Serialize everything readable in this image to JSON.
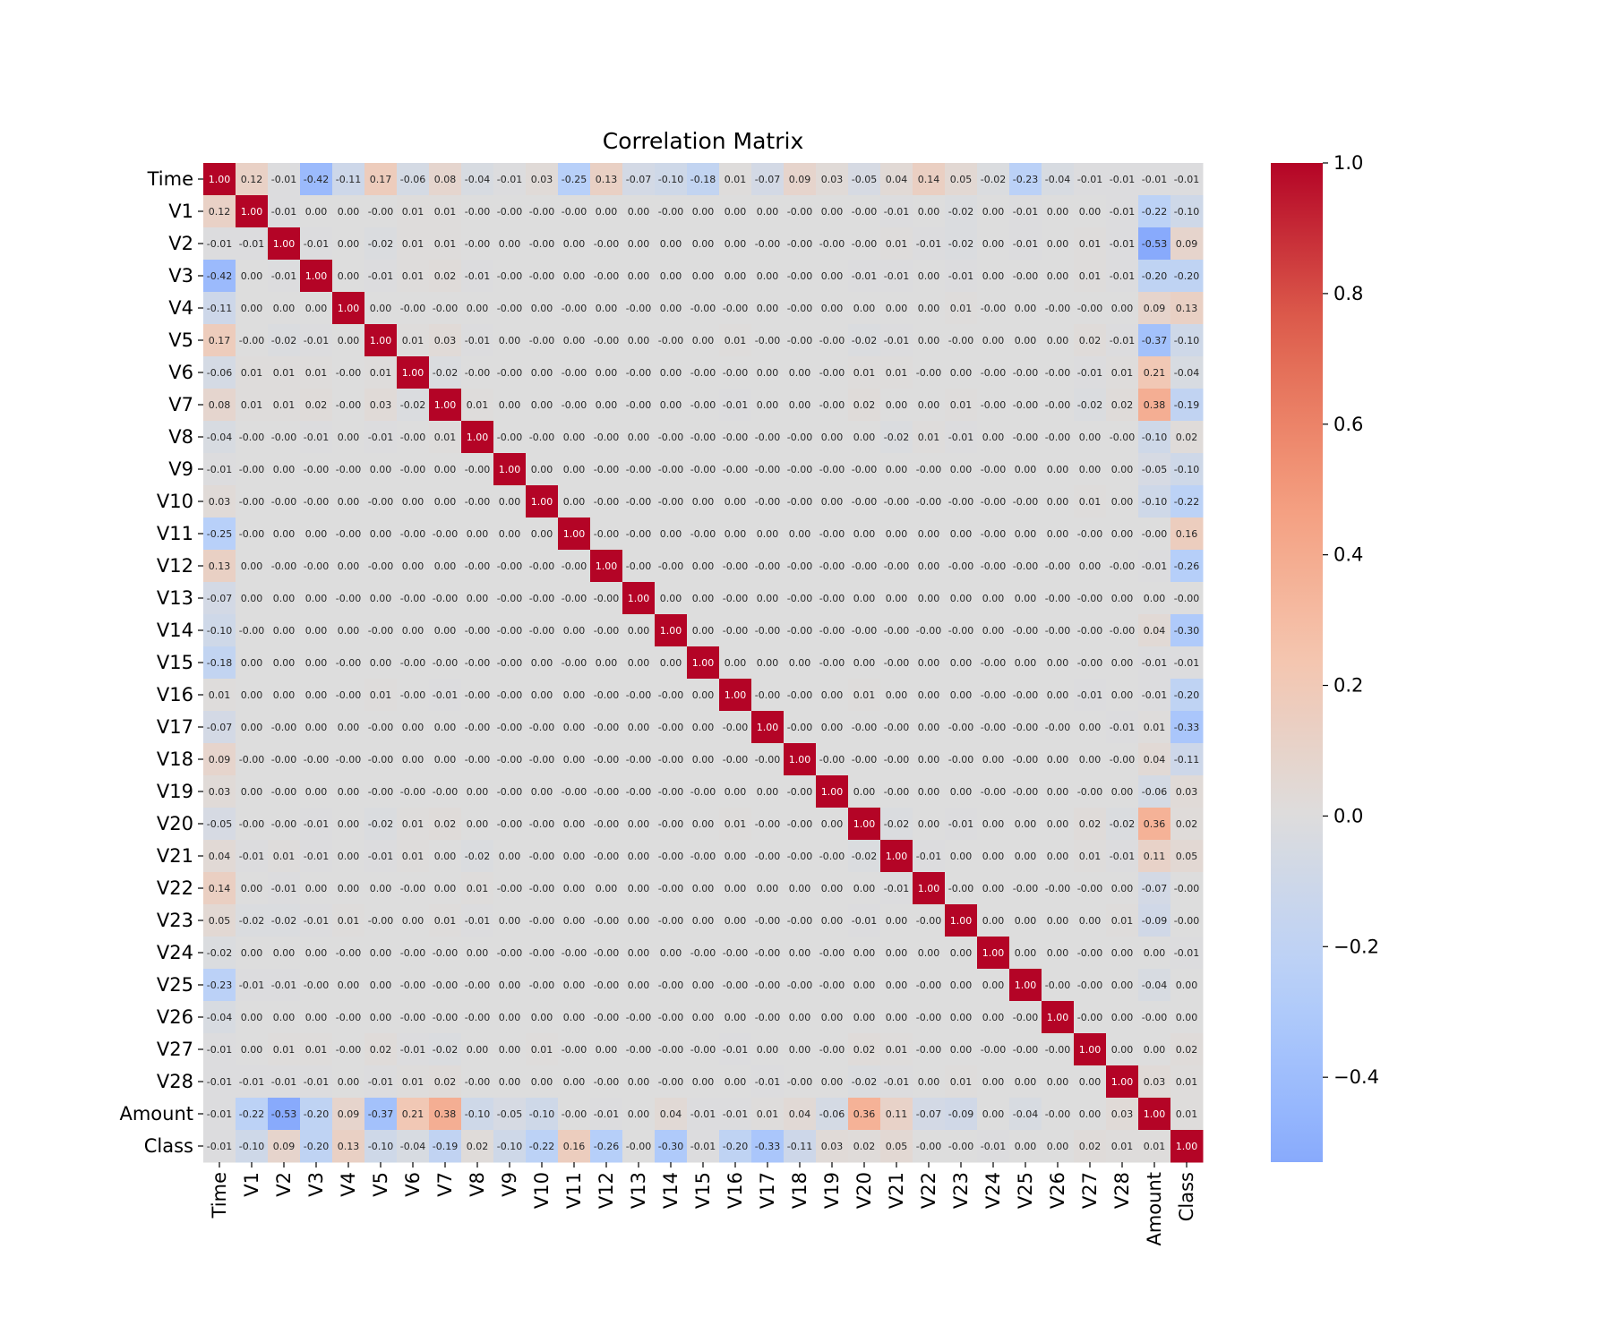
{
  "chart_data": {
    "type": "heatmap",
    "title": "Correlation Matrix",
    "variables": [
      "Time",
      "V1",
      "V2",
      "V3",
      "V4",
      "V5",
      "V6",
      "V7",
      "V8",
      "V9",
      "V10",
      "V11",
      "V12",
      "V13",
      "V14",
      "V15",
      "V16",
      "V17",
      "V18",
      "V19",
      "V20",
      "V21",
      "V22",
      "V23",
      "V24",
      "V25",
      "V26",
      "V27",
      "V28",
      "Amount",
      "Class"
    ],
    "cell_labels": [
      [
        "1.00",
        "0.12",
        "-0.01",
        "-0.42",
        "-0.11",
        "0.17",
        "-0.06",
        "0.08",
        "-0.04",
        "-0.01",
        "0.03",
        "-0.25",
        "0.13",
        "-0.07",
        "-0.10",
        "-0.18",
        "0.01",
        "-0.07",
        "0.09",
        "0.03",
        "-0.05",
        "0.04",
        "0.14",
        "0.05",
        "-0.02",
        "-0.23",
        "-0.04",
        "-0.01",
        "-0.01",
        "-0.01",
        "-0.01"
      ],
      [
        "0.12",
        "1.00",
        "-0.01",
        "0.00",
        "0.00",
        "-0.00",
        "0.01",
        "0.01",
        "-0.00",
        "-0.00",
        "-0.00",
        "-0.00",
        "0.00",
        "0.00",
        "-0.00",
        "0.00",
        "0.00",
        "0.00",
        "-0.00",
        "0.00",
        "-0.00",
        "-0.01",
        "0.00",
        "-0.02",
        "0.00",
        "-0.01",
        "0.00",
        "0.00",
        "-0.01",
        "-0.22",
        "-0.10"
      ],
      [
        "-0.01",
        "-0.01",
        "1.00",
        "-0.01",
        "0.00",
        "-0.02",
        "0.01",
        "0.01",
        "-0.00",
        "0.00",
        "-0.00",
        "0.00",
        "-0.00",
        "0.00",
        "0.00",
        "0.00",
        "0.00",
        "-0.00",
        "-0.00",
        "-0.00",
        "-0.00",
        "0.01",
        "-0.01",
        "-0.02",
        "0.00",
        "-0.01",
        "0.00",
        "0.01",
        "-0.01",
        "-0.53",
        "0.09"
      ],
      [
        "-0.42",
        "0.00",
        "-0.01",
        "1.00",
        "0.00",
        "-0.01",
        "0.01",
        "0.02",
        "-0.01",
        "-0.00",
        "-0.00",
        "0.00",
        "-0.00",
        "0.00",
        "0.00",
        "0.00",
        "0.00",
        "0.00",
        "-0.00",
        "0.00",
        "-0.01",
        "-0.01",
        "0.00",
        "-0.01",
        "0.00",
        "-0.00",
        "0.00",
        "0.01",
        "-0.01",
        "-0.20",
        "-0.20"
      ],
      [
        "-0.11",
        "0.00",
        "0.00",
        "0.00",
        "1.00",
        "0.00",
        "-0.00",
        "-0.00",
        "0.00",
        "-0.00",
        "0.00",
        "-0.00",
        "0.00",
        "-0.00",
        "0.00",
        "-0.00",
        "-0.00",
        "0.00",
        "-0.00",
        "0.00",
        "0.00",
        "0.00",
        "0.00",
        "0.01",
        "-0.00",
        "0.00",
        "-0.00",
        "-0.00",
        "0.00",
        "0.09",
        "0.13"
      ],
      [
        "0.17",
        "-0.00",
        "-0.02",
        "-0.01",
        "0.00",
        "1.00",
        "0.01",
        "0.03",
        "-0.01",
        "0.00",
        "-0.00",
        "0.00",
        "-0.00",
        "0.00",
        "-0.00",
        "0.00",
        "0.01",
        "-0.00",
        "-0.00",
        "-0.00",
        "-0.02",
        "-0.01",
        "0.00",
        "-0.00",
        "0.00",
        "0.00",
        "0.00",
        "0.02",
        "-0.01",
        "-0.37",
        "-0.10"
      ],
      [
        "-0.06",
        "0.01",
        "0.01",
        "0.01",
        "-0.00",
        "0.01",
        "1.00",
        "-0.02",
        "-0.00",
        "-0.00",
        "0.00",
        "-0.00",
        "0.00",
        "-0.00",
        "0.00",
        "-0.00",
        "-0.00",
        "0.00",
        "0.00",
        "-0.00",
        "0.01",
        "0.01",
        "-0.00",
        "0.00",
        "-0.00",
        "-0.00",
        "-0.00",
        "-0.01",
        "0.01",
        "0.21",
        "-0.04"
      ],
      [
        "0.08",
        "0.01",
        "0.01",
        "0.02",
        "-0.00",
        "0.03",
        "-0.02",
        "1.00",
        "0.01",
        "0.00",
        "0.00",
        "-0.00",
        "0.00",
        "-0.00",
        "0.00",
        "-0.00",
        "-0.01",
        "0.00",
        "0.00",
        "-0.00",
        "0.02",
        "0.00",
        "0.00",
        "0.01",
        "-0.00",
        "-0.00",
        "-0.00",
        "-0.02",
        "0.02",
        "0.38",
        "-0.19"
      ],
      [
        "-0.04",
        "-0.00",
        "-0.00",
        "-0.01",
        "0.00",
        "-0.01",
        "-0.00",
        "0.01",
        "1.00",
        "-0.00",
        "-0.00",
        "0.00",
        "-0.00",
        "0.00",
        "-0.00",
        "-0.00",
        "-0.00",
        "-0.00",
        "-0.00",
        "0.00",
        "0.00",
        "-0.02",
        "0.01",
        "-0.01",
        "0.00",
        "-0.00",
        "-0.00",
        "0.00",
        "-0.00",
        "-0.10",
        "0.02"
      ],
      [
        "-0.01",
        "-0.00",
        "0.00",
        "-0.00",
        "-0.00",
        "0.00",
        "-0.00",
        "0.00",
        "-0.00",
        "1.00",
        "0.00",
        "0.00",
        "-0.00",
        "-0.00",
        "-0.00",
        "-0.00",
        "-0.00",
        "-0.00",
        "-0.00",
        "-0.00",
        "-0.00",
        "0.00",
        "-0.00",
        "0.00",
        "-0.00",
        "0.00",
        "0.00",
        "0.00",
        "0.00",
        "-0.05",
        "-0.10"
      ],
      [
        "0.03",
        "-0.00",
        "-0.00",
        "-0.00",
        "0.00",
        "-0.00",
        "0.00",
        "0.00",
        "-0.00",
        "0.00",
        "1.00",
        "0.00",
        "-0.00",
        "-0.00",
        "-0.00",
        "0.00",
        "0.00",
        "-0.00",
        "-0.00",
        "0.00",
        "-0.00",
        "-0.00",
        "-0.00",
        "-0.00",
        "-0.00",
        "-0.00",
        "0.00",
        "0.01",
        "0.00",
        "-0.10",
        "-0.22"
      ],
      [
        "-0.25",
        "-0.00",
        "0.00",
        "0.00",
        "-0.00",
        "0.00",
        "-0.00",
        "-0.00",
        "0.00",
        "0.00",
        "0.00",
        "1.00",
        "-0.00",
        "-0.00",
        "0.00",
        "-0.00",
        "0.00",
        "0.00",
        "0.00",
        "-0.00",
        "0.00",
        "0.00",
        "0.00",
        "0.00",
        "-0.00",
        "0.00",
        "0.00",
        "-0.00",
        "0.00",
        "-0.00",
        "0.16"
      ],
      [
        "0.13",
        "0.00",
        "-0.00",
        "-0.00",
        "0.00",
        "-0.00",
        "0.00",
        "0.00",
        "-0.00",
        "-0.00",
        "-0.00",
        "-0.00",
        "1.00",
        "-0.00",
        "-0.00",
        "0.00",
        "-0.00",
        "-0.00",
        "-0.00",
        "-0.00",
        "-0.00",
        "-0.00",
        "0.00",
        "-0.00",
        "-0.00",
        "-0.00",
        "-0.00",
        "0.00",
        "-0.00",
        "-0.01",
        "-0.26"
      ],
      [
        "-0.07",
        "0.00",
        "0.00",
        "0.00",
        "-0.00",
        "0.00",
        "-0.00",
        "-0.00",
        "0.00",
        "-0.00",
        "-0.00",
        "-0.00",
        "-0.00",
        "1.00",
        "0.00",
        "0.00",
        "-0.00",
        "0.00",
        "-0.00",
        "-0.00",
        "0.00",
        "0.00",
        "0.00",
        "0.00",
        "0.00",
        "0.00",
        "-0.00",
        "-0.00",
        "0.00",
        "0.00",
        "-0.00"
      ],
      [
        "-0.10",
        "-0.00",
        "0.00",
        "0.00",
        "0.00",
        "-0.00",
        "0.00",
        "0.00",
        "-0.00",
        "-0.00",
        "-0.00",
        "0.00",
        "-0.00",
        "0.00",
        "1.00",
        "0.00",
        "-0.00",
        "-0.00",
        "-0.00",
        "-0.00",
        "-0.00",
        "-0.00",
        "-0.00",
        "-0.00",
        "0.00",
        "-0.00",
        "-0.00",
        "-0.00",
        "-0.00",
        "0.04",
        "-0.30"
      ],
      [
        "-0.18",
        "0.00",
        "0.00",
        "0.00",
        "-0.00",
        "0.00",
        "-0.00",
        "-0.00",
        "-0.00",
        "-0.00",
        "0.00",
        "-0.00",
        "0.00",
        "0.00",
        "0.00",
        "1.00",
        "0.00",
        "0.00",
        "0.00",
        "-0.00",
        "0.00",
        "-0.00",
        "0.00",
        "0.00",
        "-0.00",
        "0.00",
        "0.00",
        "-0.00",
        "0.00",
        "-0.01",
        "-0.01"
      ],
      [
        "0.01",
        "0.00",
        "0.00",
        "0.00",
        "-0.00",
        "0.01",
        "-0.00",
        "-0.01",
        "-0.00",
        "-0.00",
        "0.00",
        "0.00",
        "-0.00",
        "-0.00",
        "-0.00",
        "0.00",
        "1.00",
        "-0.00",
        "-0.00",
        "0.00",
        "0.01",
        "0.00",
        "0.00",
        "0.00",
        "-0.00",
        "-0.00",
        "0.00",
        "-0.01",
        "0.00",
        "-0.01",
        "-0.20"
      ],
      [
        "-0.07",
        "0.00",
        "-0.00",
        "0.00",
        "0.00",
        "-0.00",
        "0.00",
        "0.00",
        "-0.00",
        "-0.00",
        "-0.00",
        "0.00",
        "-0.00",
        "0.00",
        "-0.00",
        "0.00",
        "-0.00",
        "1.00",
        "-0.00",
        "0.00",
        "-0.00",
        "-0.00",
        "0.00",
        "-0.00",
        "-0.00",
        "-0.00",
        "-0.00",
        "0.00",
        "-0.01",
        "0.01",
        "-0.33"
      ],
      [
        "0.09",
        "-0.00",
        "-0.00",
        "-0.00",
        "-0.00",
        "-0.00",
        "0.00",
        "0.00",
        "-0.00",
        "-0.00",
        "-0.00",
        "0.00",
        "-0.00",
        "-0.00",
        "-0.00",
        "0.00",
        "-0.00",
        "-0.00",
        "1.00",
        "-0.00",
        "-0.00",
        "-0.00",
        "0.00",
        "-0.00",
        "0.00",
        "-0.00",
        "0.00",
        "0.00",
        "-0.00",
        "0.04",
        "-0.11"
      ],
      [
        "0.03",
        "0.00",
        "-0.00",
        "0.00",
        "0.00",
        "-0.00",
        "-0.00",
        "-0.00",
        "0.00",
        "-0.00",
        "0.00",
        "-0.00",
        "-0.00",
        "-0.00",
        "-0.00",
        "-0.00",
        "0.00",
        "0.00",
        "-0.00",
        "1.00",
        "0.00",
        "-0.00",
        "0.00",
        "0.00",
        "-0.00",
        "-0.00",
        "0.00",
        "-0.00",
        "0.00",
        "-0.06",
        "0.03"
      ],
      [
        "-0.05",
        "-0.00",
        "-0.00",
        "-0.01",
        "0.00",
        "-0.02",
        "0.01",
        "0.02",
        "0.00",
        "-0.00",
        "-0.00",
        "0.00",
        "-0.00",
        "0.00",
        "-0.00",
        "0.00",
        "0.01",
        "-0.00",
        "-0.00",
        "0.00",
        "1.00",
        "-0.02",
        "0.00",
        "-0.01",
        "0.00",
        "0.00",
        "0.00",
        "0.02",
        "-0.02",
        "0.36",
        "0.02"
      ],
      [
        "0.04",
        "-0.01",
        "0.01",
        "-0.01",
        "0.00",
        "-0.01",
        "0.01",
        "0.00",
        "-0.02",
        "0.00",
        "-0.00",
        "0.00",
        "-0.00",
        "0.00",
        "-0.00",
        "-0.00",
        "0.00",
        "-0.00",
        "-0.00",
        "-0.00",
        "-0.02",
        "1.00",
        "-0.01",
        "0.00",
        "0.00",
        "0.00",
        "0.00",
        "0.01",
        "-0.01",
        "0.11",
        "0.05"
      ],
      [
        "0.14",
        "0.00",
        "-0.01",
        "0.00",
        "0.00",
        "0.00",
        "-0.00",
        "0.00",
        "0.01",
        "-0.00",
        "-0.00",
        "0.00",
        "0.00",
        "0.00",
        "-0.00",
        "0.00",
        "0.00",
        "0.00",
        "0.00",
        "0.00",
        "0.00",
        "-0.01",
        "1.00",
        "-0.00",
        "0.00",
        "-0.00",
        "-0.00",
        "-0.00",
        "0.00",
        "-0.07",
        "-0.00"
      ],
      [
        "0.05",
        "-0.02",
        "-0.02",
        "-0.01",
        "0.01",
        "-0.00",
        "0.00",
        "0.01",
        "-0.01",
        "0.00",
        "-0.00",
        "0.00",
        "-0.00",
        "0.00",
        "-0.00",
        "0.00",
        "0.00",
        "-0.00",
        "-0.00",
        "0.00",
        "-0.01",
        "0.00",
        "-0.00",
        "1.00",
        "0.00",
        "0.00",
        "0.00",
        "0.00",
        "0.01",
        "-0.09",
        "-0.00"
      ],
      [
        "-0.02",
        "0.00",
        "0.00",
        "0.00",
        "-0.00",
        "0.00",
        "-0.00",
        "-0.00",
        "0.00",
        "-0.00",
        "-0.00",
        "-0.00",
        "-0.00",
        "0.00",
        "0.00",
        "-0.00",
        "-0.00",
        "-0.00",
        "0.00",
        "-0.00",
        "0.00",
        "0.00",
        "0.00",
        "0.00",
        "1.00",
        "0.00",
        "0.00",
        "-0.00",
        "0.00",
        "0.00",
        "-0.01"
      ],
      [
        "-0.23",
        "-0.01",
        "-0.01",
        "-0.00",
        "0.00",
        "0.00",
        "-0.00",
        "-0.00",
        "-0.00",
        "0.00",
        "-0.00",
        "0.00",
        "-0.00",
        "0.00",
        "-0.00",
        "0.00",
        "-0.00",
        "-0.00",
        "-0.00",
        "-0.00",
        "0.00",
        "0.00",
        "-0.00",
        "0.00",
        "0.00",
        "1.00",
        "-0.00",
        "-0.00",
        "0.00",
        "-0.04",
        "0.00"
      ],
      [
        "-0.04",
        "0.00",
        "0.00",
        "0.00",
        "-0.00",
        "0.00",
        "-0.00",
        "-0.00",
        "-0.00",
        "0.00",
        "0.00",
        "0.00",
        "-0.00",
        "-0.00",
        "-0.00",
        "0.00",
        "0.00",
        "-0.00",
        "0.00",
        "0.00",
        "0.00",
        "0.00",
        "-0.00",
        "0.00",
        "0.00",
        "-0.00",
        "1.00",
        "-0.00",
        "0.00",
        "-0.00",
        "0.00"
      ],
      [
        "-0.01",
        "0.00",
        "0.01",
        "0.01",
        "-0.00",
        "0.02",
        "-0.01",
        "-0.02",
        "0.00",
        "0.00",
        "0.01",
        "-0.00",
        "0.00",
        "-0.00",
        "-0.00",
        "-0.00",
        "-0.01",
        "0.00",
        "0.00",
        "-0.00",
        "0.02",
        "0.01",
        "-0.00",
        "0.00",
        "-0.00",
        "-0.00",
        "-0.00",
        "1.00",
        "0.00",
        "0.00",
        "0.02"
      ],
      [
        "-0.01",
        "-0.01",
        "-0.01",
        "-0.01",
        "0.00",
        "-0.01",
        "0.01",
        "0.02",
        "-0.00",
        "0.00",
        "0.00",
        "0.00",
        "-0.00",
        "0.00",
        "-0.00",
        "0.00",
        "0.00",
        "-0.01",
        "-0.00",
        "0.00",
        "-0.02",
        "-0.01",
        "0.00",
        "0.01",
        "0.00",
        "0.00",
        "0.00",
        "0.00",
        "1.00",
        "0.03",
        "0.01"
      ],
      [
        "-0.01",
        "-0.22",
        "-0.53",
        "-0.20",
        "0.09",
        "-0.37",
        "0.21",
        "0.38",
        "-0.10",
        "-0.05",
        "-0.10",
        "-0.00",
        "-0.01",
        "0.00",
        "0.04",
        "-0.01",
        "-0.01",
        "0.01",
        "0.04",
        "-0.06",
        "0.36",
        "0.11",
        "-0.07",
        "-0.09",
        "0.00",
        "-0.04",
        "-0.00",
        "0.00",
        "0.03",
        "1.00",
        "0.01"
      ],
      [
        "-0.01",
        "-0.10",
        "0.09",
        "-0.20",
        "0.13",
        "-0.10",
        "-0.04",
        "-0.19",
        "0.02",
        "-0.10",
        "-0.22",
        "0.16",
        "-0.26",
        "-0.00",
        "-0.30",
        "-0.01",
        "-0.20",
        "-0.33",
        "-0.11",
        "0.03",
        "0.02",
        "0.05",
        "-0.00",
        "-0.00",
        "-0.01",
        "0.00",
        "0.00",
        "0.02",
        "0.01",
        "0.01",
        "1.00"
      ]
    ],
    "colorbar": {
      "colormap": "coolwarm",
      "vmin": -0.53,
      "vmax": 1.0,
      "center": 0.0,
      "ticks": [
        1.0,
        0.8,
        0.6,
        0.4,
        0.2,
        0.0,
        -0.2,
        -0.4
      ],
      "tick_labels": [
        "1.0",
        "0.8",
        "0.6",
        "0.4",
        "0.2",
        "0.0",
        "−0.2",
        "−0.4"
      ]
    },
    "xlabel": "",
    "ylabel": ""
  }
}
